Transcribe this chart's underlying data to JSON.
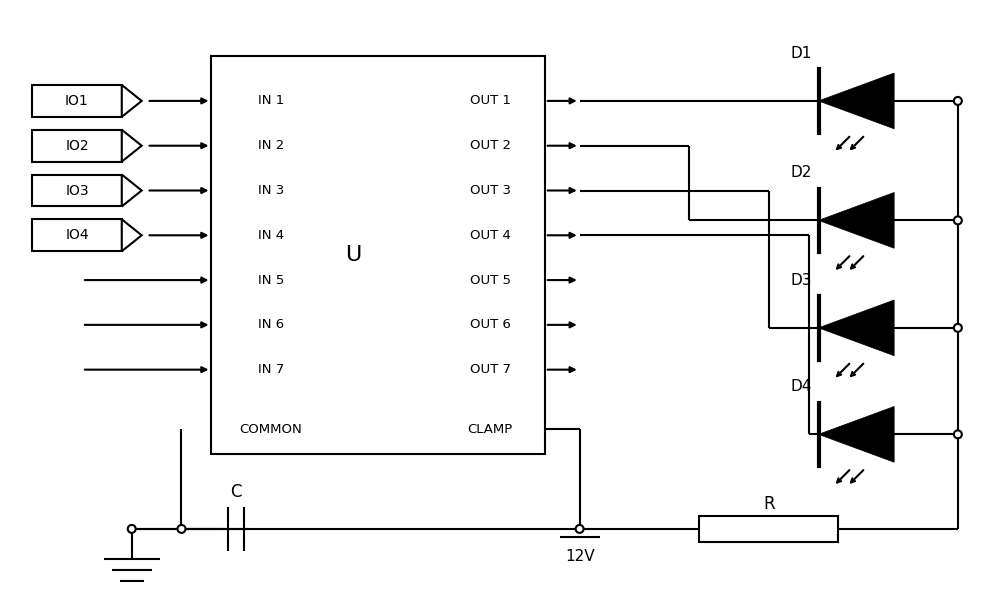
{
  "bg_color": "#ffffff",
  "line_color": "#000000",
  "lw": 1.5,
  "fig_width": 10.0,
  "fig_height": 5.94,
  "in_labels": [
    "IN 1",
    "IN 2",
    "IN 3",
    "IN 4",
    "IN 5",
    "IN 6",
    "IN 7",
    "COMMON"
  ],
  "out_labels": [
    "OUT 1",
    "OUT 2",
    "OUT 3",
    "OUT 4",
    "OUT 5",
    "OUT 6",
    "OUT 7",
    "CLAMP"
  ],
  "io_labels": [
    "IO1",
    "IO2",
    "IO3",
    "IO4"
  ],
  "diode_labels": [
    "D1",
    "D2",
    "D3",
    "D4"
  ],
  "ic_label": "U",
  "cap_label": "C",
  "res_label": "R",
  "v_label": "12V"
}
